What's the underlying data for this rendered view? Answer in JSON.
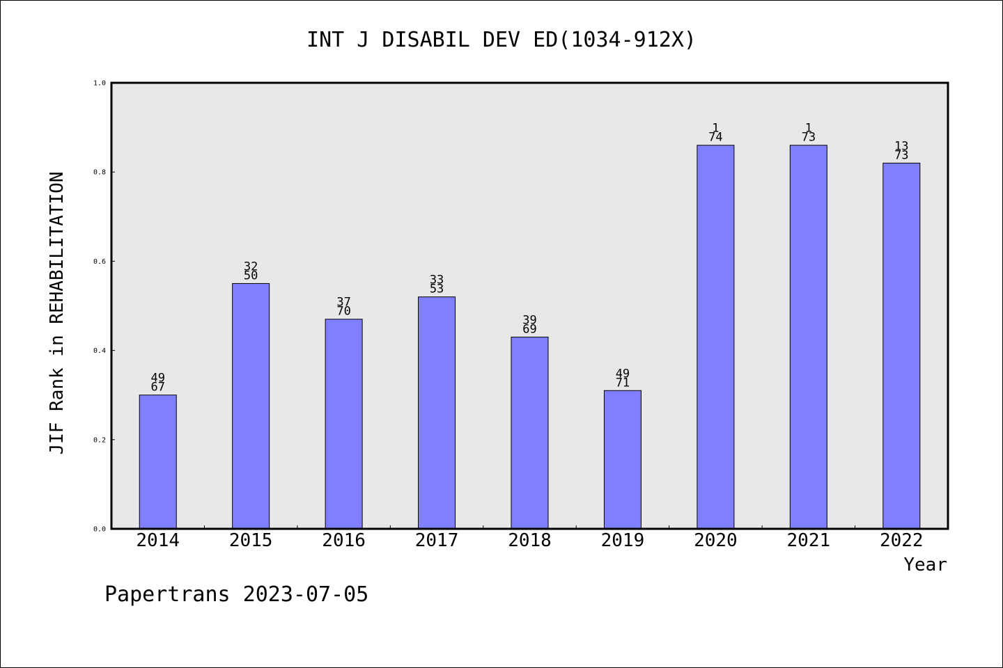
{
  "chart_data": {
    "type": "bar",
    "title": "INT J DISABIL DEV ED(1034-912X)",
    "xlabel": "Year",
    "ylabel": "JIF Rank in REHABILITATION",
    "ylim": [
      0,
      1.0
    ],
    "yticks": [
      "0.0",
      "0.2",
      "0.4",
      "0.6",
      "0.8",
      "1.0"
    ],
    "categories": [
      "2014",
      "2015",
      "2016",
      "2017",
      "2018",
      "2019",
      "2020",
      "2021",
      "2022"
    ],
    "values": [
      0.3,
      0.55,
      0.47,
      0.52,
      0.43,
      0.31,
      0.86,
      0.86,
      0.82
    ],
    "rank": [
      "49",
      "32",
      "37",
      "33",
      "39",
      "49",
      "1",
      "1",
      "13"
    ],
    "total": [
      "67",
      "50",
      "70",
      "53",
      "69",
      "71",
      "74",
      "73",
      "73"
    ],
    "grid": false,
    "colors": {
      "bar": "#8080ff",
      "plot_bg": "#e8e8e8"
    }
  },
  "footer": "Papertrans 2023-07-05"
}
